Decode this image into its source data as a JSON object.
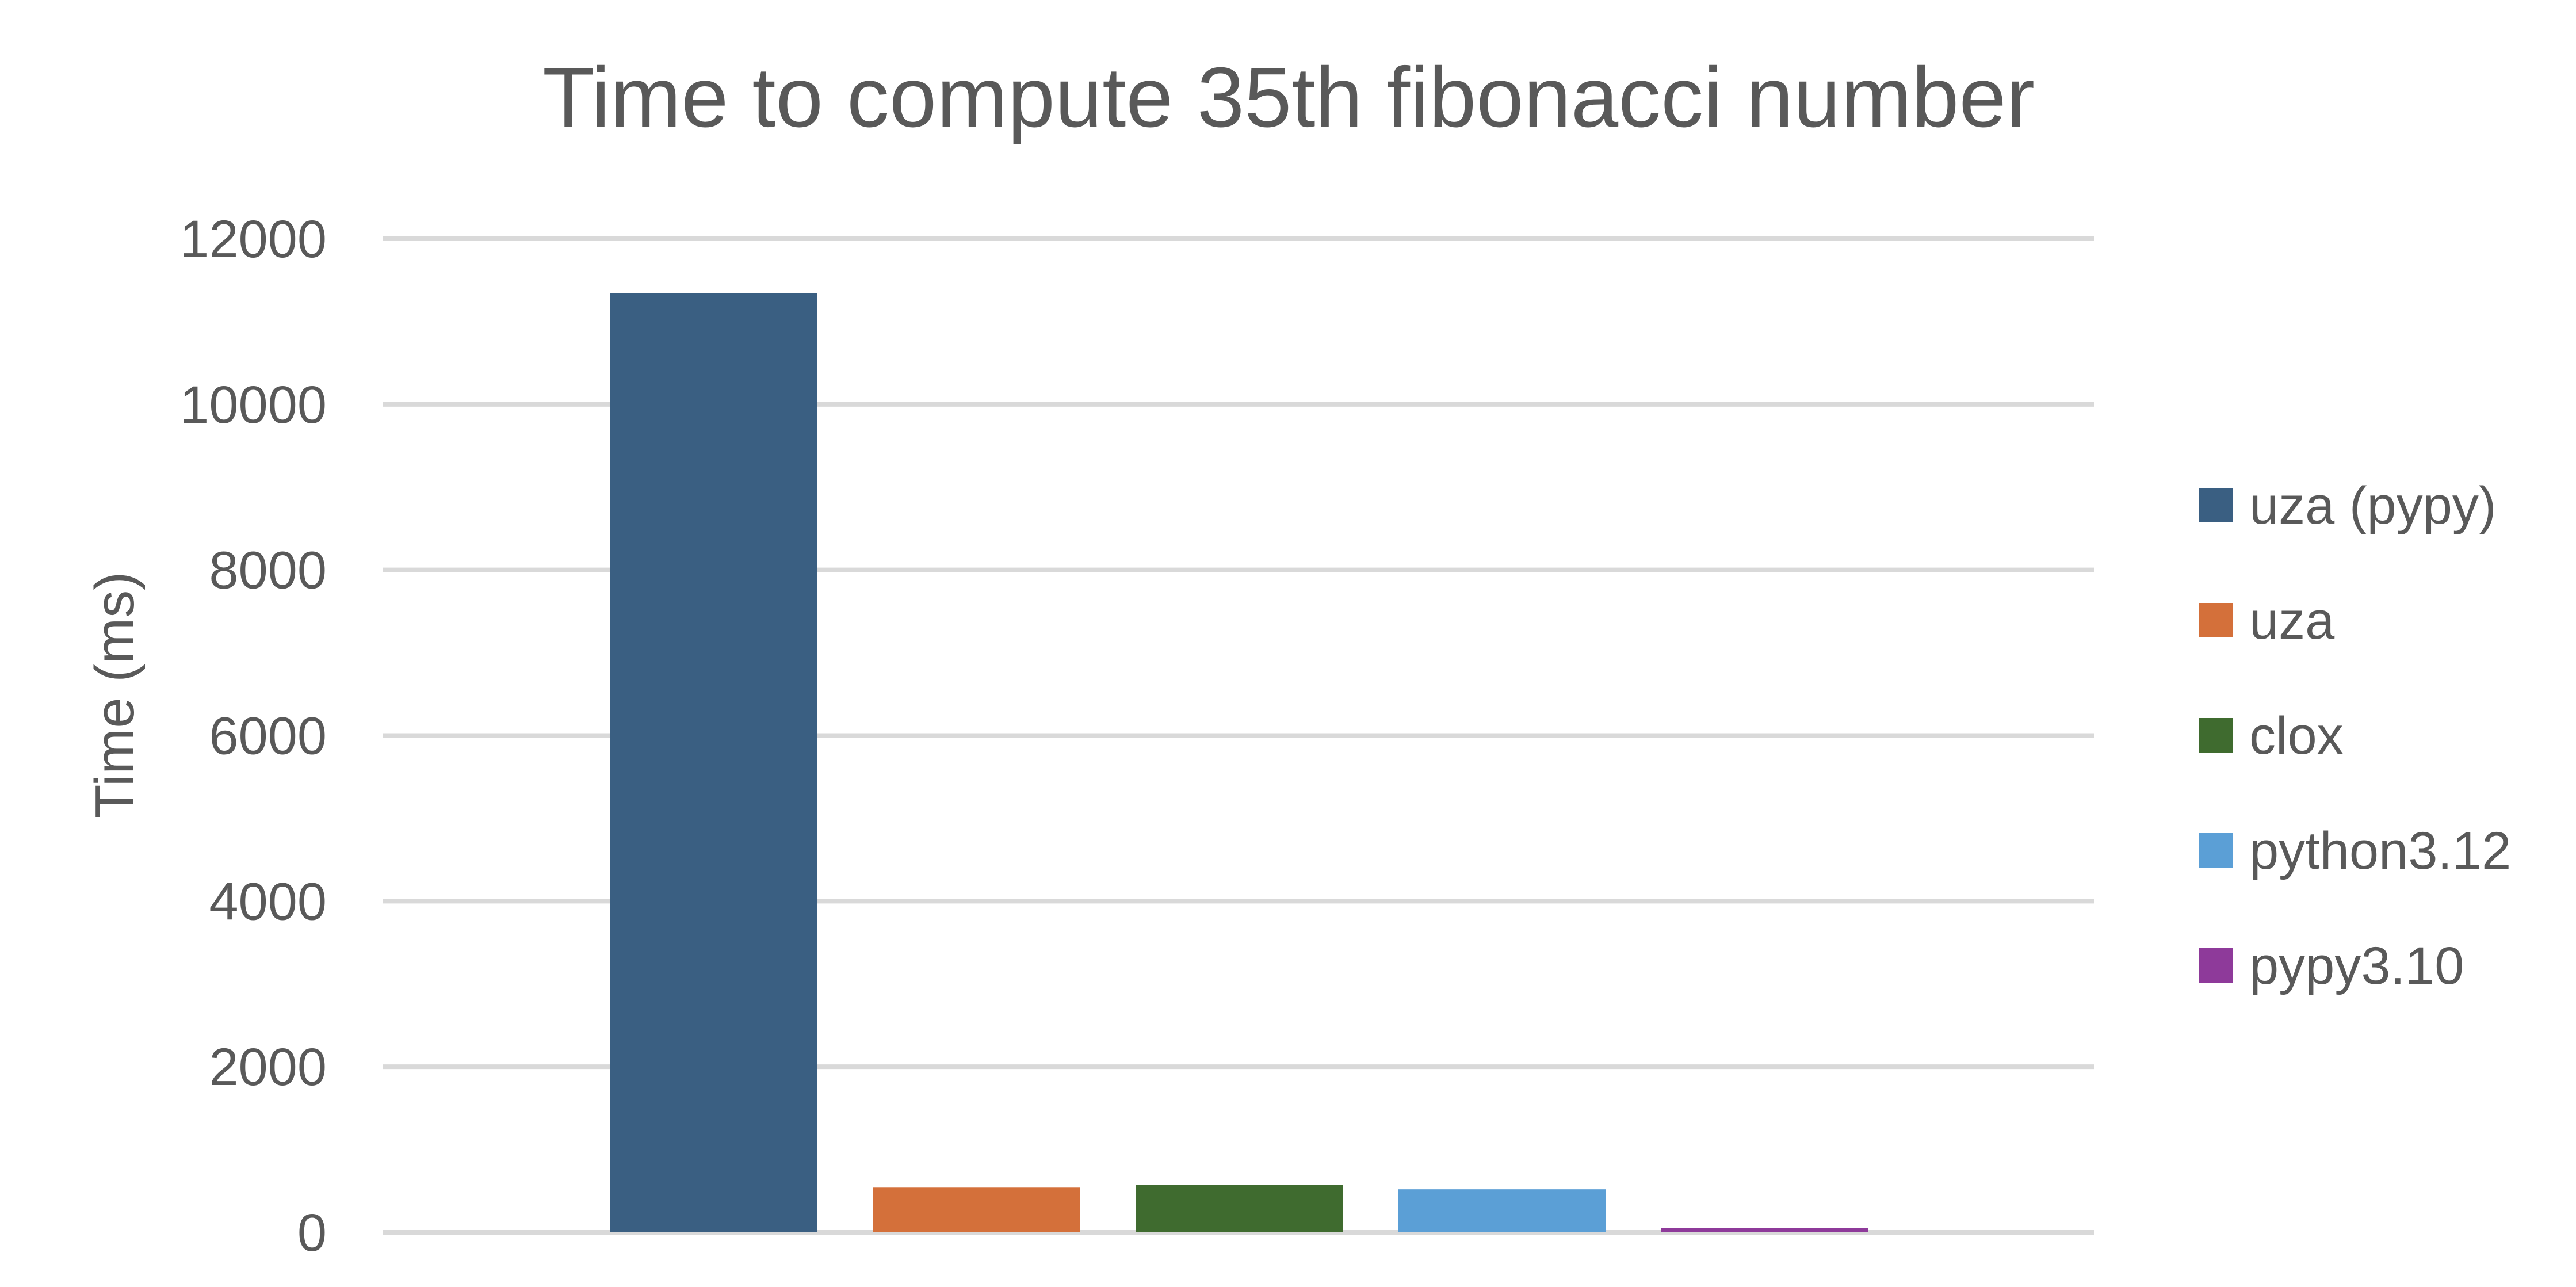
{
  "chart_data": {
    "type": "bar",
    "title": "Time to compute 35th fibonacci number",
    "xlabel": "",
    "ylabel": "Time (ms)",
    "ylim": [
      0,
      12000
    ],
    "yticks": [
      "0",
      "2000",
      "4000",
      "6000",
      "8000",
      "10000",
      "12000"
    ],
    "grid": true,
    "legend_position": "right",
    "categories": [
      ""
    ],
    "series": [
      {
        "name": "uza (pypy)",
        "values": [
          11340
        ],
        "color": "#3A5F82"
      },
      {
        "name": "uza",
        "values": [
          540
        ],
        "color": "#D4703A"
      },
      {
        "name": "clox",
        "values": [
          570
        ],
        "color": "#3F6B2F"
      },
      {
        "name": "python3.12",
        "values": [
          520
        ],
        "color": "#5B9FD6"
      },
      {
        "name": "pypy3.10",
        "values": [
          55
        ],
        "color": "#8E3A9A"
      }
    ]
  }
}
